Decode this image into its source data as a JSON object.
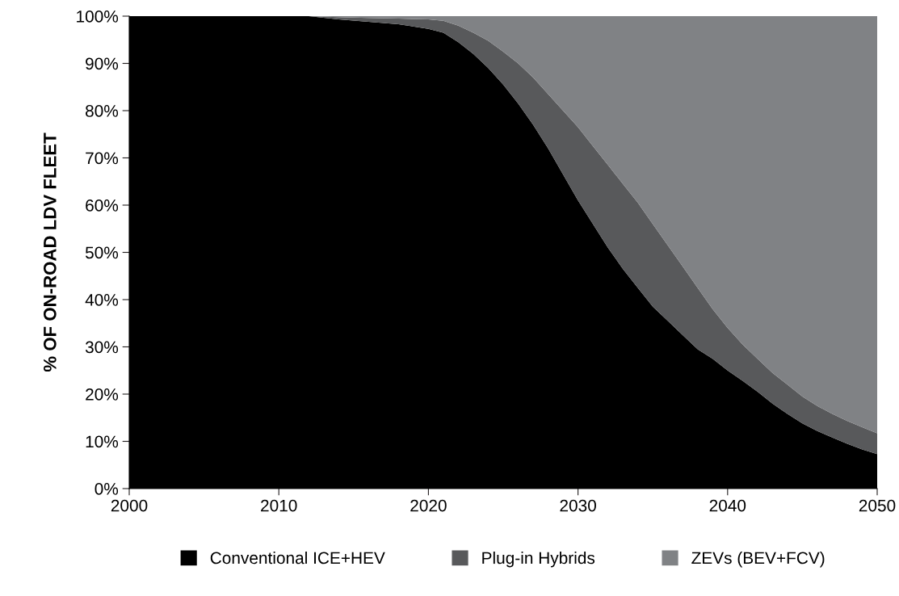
{
  "chart_data": {
    "type": "area",
    "stacked": true,
    "ylabel": "% OF ON-ROAD LDV FLEET",
    "x": [
      2000,
      2005,
      2010,
      2012,
      2014,
      2016,
      2018,
      2020,
      2021,
      2022,
      2023,
      2024,
      2025,
      2026,
      2027,
      2028,
      2029,
      2030,
      2031,
      2032,
      2033,
      2034,
      2035,
      2036,
      2037,
      2038,
      2039,
      2040,
      2041,
      2042,
      2043,
      2044,
      2045,
      2046,
      2047,
      2048,
      2049,
      2050
    ],
    "series": [
      {
        "name": "Conventional ICE+HEV",
        "color": "#000000",
        "values": [
          100,
          100,
          100,
          100,
          99.3,
          98.8,
          98.3,
          97.3,
          96.5,
          94.5,
          92,
          89,
          85.5,
          81.5,
          77,
          72,
          66.5,
          61,
          56,
          51,
          46.5,
          42.5,
          38.5,
          35.5,
          32.5,
          29.5,
          27.5,
          25,
          22.8,
          20.5,
          18,
          15.8,
          13.8,
          12.2,
          10.8,
          9.5,
          8.3,
          7.3
        ]
      },
      {
        "name": "Plug-in Hybrids",
        "color": "#58595b",
        "values": [
          0,
          0,
          0,
          0,
          0.5,
          0.8,
          1.2,
          2,
          2.5,
          3.5,
          4.5,
          5.8,
          7,
          8.5,
          10,
          11.5,
          13.5,
          15.5,
          16.5,
          17.5,
          18,
          18,
          17.5,
          16,
          14.5,
          13,
          10.5,
          9,
          7.7,
          7,
          6.5,
          6.2,
          5.7,
          5.3,
          5,
          4.8,
          4.7,
          4.4
        ]
      },
      {
        "name": "ZEVs (BEV+FCV)",
        "color": "#808285",
        "values": [
          0,
          0,
          0,
          0,
          0.2,
          0.4,
          0.5,
          0.7,
          1,
          2,
          3.5,
          5.2,
          7.5,
          10,
          13,
          16.5,
          20,
          23.5,
          27.5,
          31.5,
          35.5,
          39.5,
          44,
          48.5,
          53,
          57.5,
          62,
          66,
          69.5,
          72.5,
          75.5,
          78,
          80.5,
          82.5,
          84.2,
          85.7,
          87,
          88.3
        ]
      }
    ],
    "xlim": [
      2000,
      2050
    ],
    "xticks": [
      2000,
      2010,
      2020,
      2030,
      2040,
      2050
    ],
    "ylim": [
      0,
      100
    ],
    "yticks": [
      {
        "value": 0,
        "label": "0%"
      },
      {
        "value": 10,
        "label": "10%"
      },
      {
        "value": 20,
        "label": "20%"
      },
      {
        "value": 30,
        "label": "30%"
      },
      {
        "value": 40,
        "label": "40%"
      },
      {
        "value": 50,
        "label": "50%"
      },
      {
        "value": 60,
        "label": "60%"
      },
      {
        "value": 70,
        "label": "70%"
      },
      {
        "value": 80,
        "label": "80%"
      },
      {
        "value": 90,
        "label": "90%"
      },
      {
        "value": 100,
        "label": "100%"
      }
    ],
    "grid": false,
    "legend": "bottom"
  }
}
